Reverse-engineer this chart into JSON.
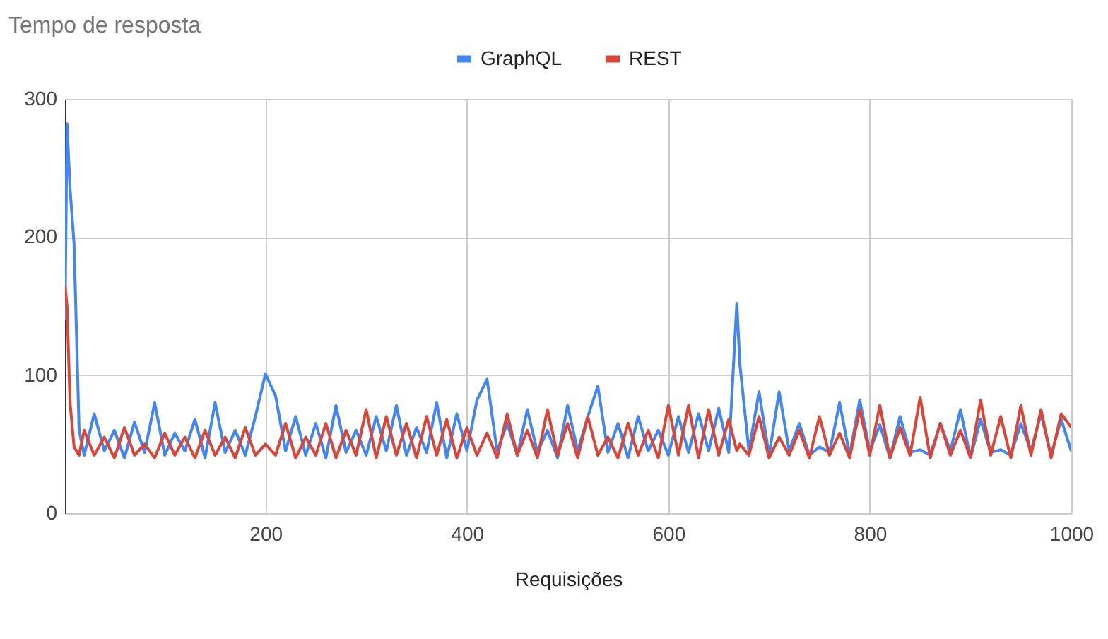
{
  "chart_data": {
    "type": "line",
    "title": "Tempo de resposta",
    "xlabel": "Requisições",
    "x": [
      1,
      3,
      6,
      10,
      15,
      20,
      30,
      40,
      50,
      60,
      70,
      80,
      90,
      100,
      110,
      120,
      130,
      140,
      150,
      160,
      170,
      180,
      190,
      200,
      210,
      220,
      230,
      240,
      250,
      260,
      270,
      280,
      290,
      300,
      310,
      320,
      330,
      340,
      350,
      360,
      370,
      380,
      390,
      400,
      410,
      420,
      430,
      440,
      450,
      460,
      470,
      480,
      490,
      500,
      510,
      520,
      530,
      540,
      550,
      560,
      570,
      580,
      590,
      600,
      610,
      620,
      630,
      640,
      650,
      660,
      668,
      671,
      680,
      690,
      700,
      710,
      720,
      730,
      740,
      750,
      760,
      770,
      780,
      790,
      800,
      810,
      820,
      830,
      840,
      850,
      860,
      870,
      880,
      890,
      900,
      910,
      920,
      930,
      940,
      950,
      960,
      970,
      980,
      990,
      1000
    ],
    "series": [
      {
        "name": "GraphQL",
        "color": "#4285f4",
        "values": [
          140,
          282,
          235,
          195,
          60,
          42,
          72,
          45,
          60,
          40,
          66,
          44,
          80,
          42,
          58,
          45,
          68,
          40,
          80,
          44,
          60,
          42,
          70,
          101,
          85,
          45,
          70,
          42,
          65,
          40,
          78,
          44,
          60,
          42,
          70,
          45,
          78,
          42,
          62,
          44,
          80,
          40,
          72,
          45,
          82,
          97,
          45,
          65,
          42,
          75,
          44,
          60,
          40,
          78,
          45,
          70,
          92,
          44,
          65,
          40,
          70,
          45,
          60,
          42,
          70,
          44,
          72,
          45,
          76,
          44,
          152,
          108,
          45,
          88,
          42,
          88,
          45,
          65,
          42,
          48,
          44,
          80,
          42,
          82,
          45,
          64,
          40,
          70,
          44,
          46,
          42,
          65,
          45,
          75,
          40,
          68,
          44,
          46,
          42,
          65,
          45,
          72,
          42,
          68,
          45
        ]
      },
      {
        "name": "REST",
        "color": "#db4437",
        "values": [
          165,
          150,
          80,
          48,
          42,
          60,
          42,
          55,
          40,
          62,
          42,
          50,
          40,
          58,
          42,
          55,
          40,
          60,
          42,
          55,
          40,
          62,
          42,
          50,
          42,
          65,
          40,
          55,
          42,
          65,
          40,
          60,
          42,
          75,
          40,
          70,
          42,
          65,
          40,
          70,
          42,
          68,
          40,
          62,
          42,
          58,
          40,
          72,
          42,
          60,
          40,
          75,
          42,
          65,
          40,
          70,
          42,
          55,
          40,
          65,
          42,
          60,
          40,
          78,
          42,
          78,
          40,
          75,
          42,
          68,
          45,
          50,
          42,
          70,
          40,
          55,
          42,
          60,
          40,
          70,
          42,
          58,
          40,
          75,
          42,
          78,
          40,
          62,
          42,
          84,
          40,
          65,
          42,
          60,
          40,
          82,
          42,
          70,
          40,
          78,
          42,
          75,
          40,
          72,
          62
        ]
      }
    ],
    "xlim": [
      1,
      1000
    ],
    "xticks": [
      200,
      400,
      600,
      800,
      1000
    ],
    "ylim": [
      0,
      300
    ],
    "yticks": [
      0,
      100,
      200,
      300
    ],
    "grid": true,
    "legend": "top",
    "marker": "none",
    "line_style": "solid"
  }
}
